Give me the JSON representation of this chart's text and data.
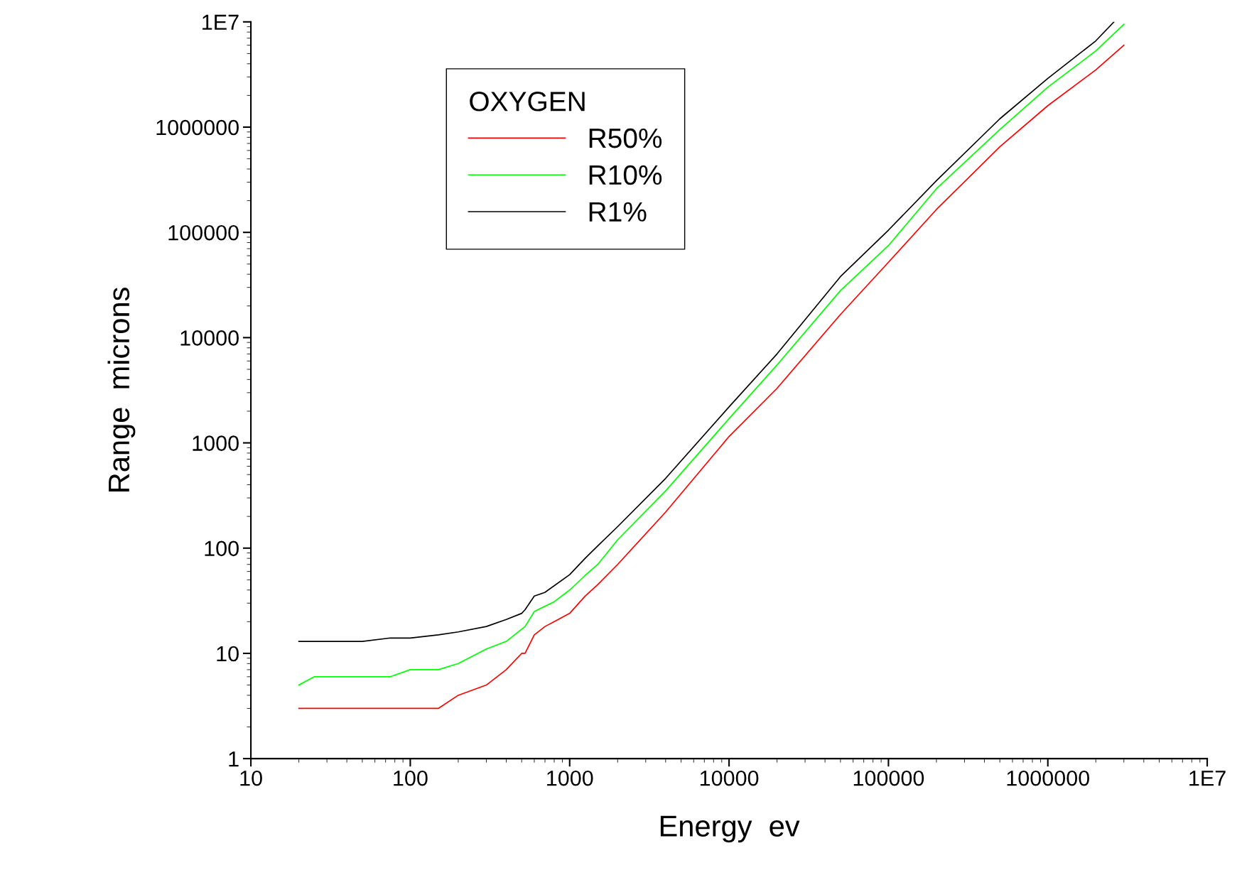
{
  "chart_data": {
    "type": "line",
    "xlabel": "Energy  ev",
    "ylabel": "Range  microns",
    "legend_title": "OXYGEN",
    "log": "xy",
    "legend": "top left",
    "grid": false,
    "line_style": "solid",
    "marker": "none",
    "xlim": [
      10,
      10000000
    ],
    "ylim": [
      1,
      10000000
    ],
    "xticks": [
      10,
      100,
      1000,
      10000,
      100000,
      1000000,
      {
        "value": 10000000,
        "label": "1E7"
      }
    ],
    "yticks": [
      1,
      10,
      100,
      1000,
      10000,
      100000,
      1000000,
      {
        "value": 10000000,
        "label": "1E7"
      }
    ],
    "series": [
      {
        "name": "R50%",
        "color": "#ff0000",
        "x": [
          20,
          50,
          100,
          150,
          200,
          300,
          400,
          500,
          525,
          600,
          700,
          800,
          1000,
          1250,
          1500,
          2000,
          4000,
          10000,
          20000,
          50000,
          100000,
          200000,
          500000,
          1000000,
          2000000,
          3000000
        ],
        "values": [
          3,
          3,
          3,
          3,
          4,
          5,
          7,
          10,
          10,
          15,
          18,
          20,
          24,
          35,
          45,
          70,
          220,
          1150,
          3300,
          16600,
          52000,
          165000,
          650000,
          1600000,
          3500000,
          6000000
        ]
      },
      {
        "name": "R10%",
        "color": "#00ff00",
        "x": [
          20,
          25,
          50,
          75,
          100,
          150,
          200,
          300,
          400,
          500,
          525,
          600,
          800,
          1000,
          1250,
          1500,
          2000,
          4000,
          10000,
          20000,
          50000,
          100000,
          200000,
          500000,
          1000000,
          2000000,
          3000000
        ],
        "values": [
          5,
          6,
          6,
          6,
          7,
          7,
          8,
          11,
          13,
          17,
          18,
          25,
          31,
          40,
          55,
          70,
          120,
          350,
          1700,
          5500,
          28000,
          75000,
          260000,
          950000,
          2400000,
          5300000,
          9500000
        ]
      },
      {
        "name": "R1%",
        "color": "#000000",
        "x": [
          20,
          50,
          75,
          100,
          150,
          200,
          300,
          400,
          500,
          525,
          600,
          700,
          1000,
          1250,
          1500,
          2000,
          4000,
          10000,
          20000,
          50000,
          100000,
          200000,
          500000,
          1000000,
          2000000,
          2600000
        ],
        "values": [
          13,
          13,
          14,
          14,
          15,
          16,
          18,
          21,
          24,
          26,
          35,
          38,
          56,
          80,
          105,
          160,
          460,
          2200,
          7000,
          38000,
          105000,
          310000,
          1200000,
          2900000,
          6600000,
          10000000
        ]
      }
    ]
  }
}
